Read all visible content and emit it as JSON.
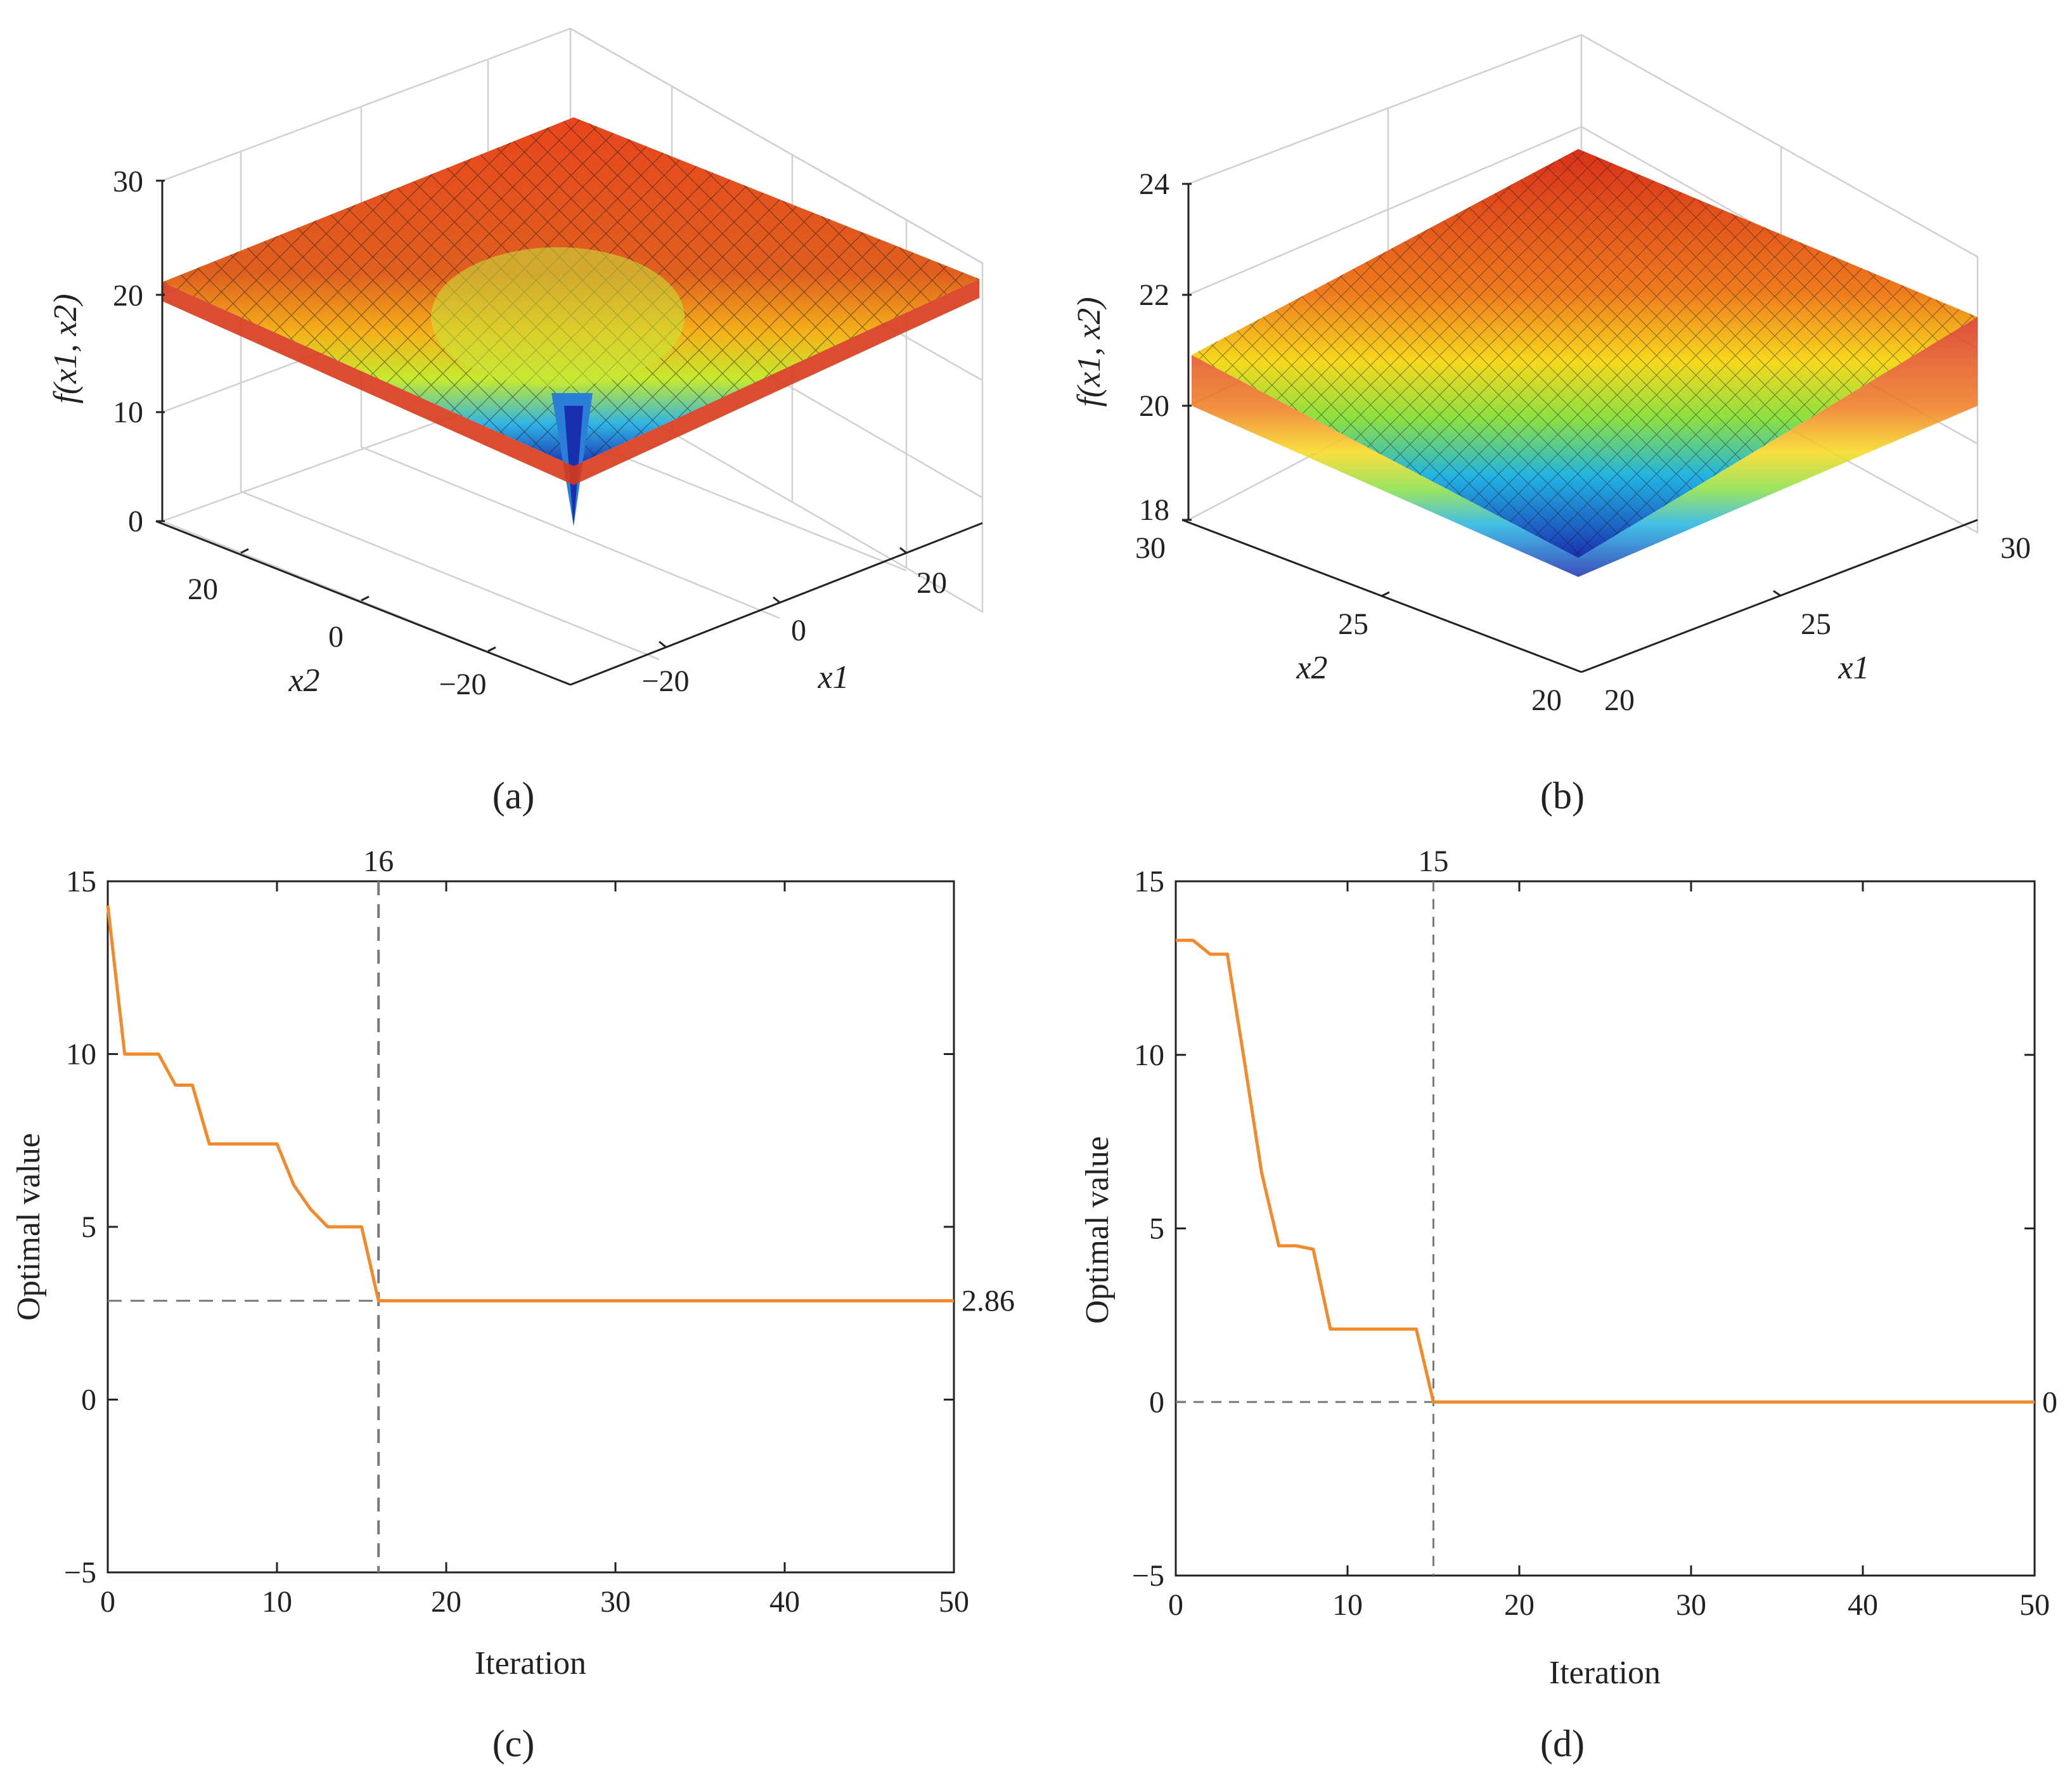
{
  "panels": {
    "a": "(a)",
    "b": "(b)",
    "c": "(c)",
    "d": "(d)"
  },
  "colors": {
    "curve": "#f28a2b",
    "dashed": "#7a7a7a",
    "axis": "#222222",
    "grid3d": "#d0d0d0",
    "surface_colormap": "jet"
  },
  "chart_data": [
    {
      "id": "a",
      "type": "surface",
      "zlabel": "f(x1, x2)",
      "xlabel": "x1",
      "ylabel": "x2",
      "zticks": [
        "0",
        "10",
        "20",
        "30"
      ],
      "xticks": [
        "−20",
        "0",
        "20"
      ],
      "yticks": [
        "20",
        "0",
        "−20"
      ],
      "zlim": [
        0,
        30
      ],
      "xlim": [
        -32,
        32
      ],
      "ylim": [
        -32,
        32
      ],
      "grid": true
    },
    {
      "id": "b",
      "type": "surface",
      "zlabel": "f(x1, x2)",
      "xlabel": "x1",
      "ylabel": "x2",
      "zticks": [
        "18",
        "20",
        "22",
        "24"
      ],
      "xticks": [
        "20",
        "25",
        "30"
      ],
      "yticks": [
        "30",
        "25",
        "20"
      ],
      "zlim": [
        18,
        24
      ],
      "xlim": [
        20,
        30
      ],
      "ylim": [
        20,
        30
      ],
      "grid": true
    },
    {
      "id": "c",
      "type": "line",
      "xlabel": "Iteration",
      "ylabel": "Optimal value",
      "xlim": [
        0,
        50
      ],
      "ylim": [
        -5,
        15
      ],
      "xticks": [
        0,
        10,
        20,
        30,
        40,
        50
      ],
      "yticks": [
        -5,
        0,
        5,
        10,
        15
      ],
      "annotation_x": "16",
      "annotation_y": "2.86",
      "marker_x": 16,
      "marker_y": 2.86,
      "series": [
        {
          "x": [
            0,
            1,
            3,
            4,
            5,
            6,
            10,
            11,
            12,
            13,
            15,
            16,
            50
          ],
          "y": [
            14.3,
            10.0,
            10.0,
            9.1,
            9.1,
            7.4,
            7.4,
            6.2,
            5.5,
            5.0,
            5.0,
            2.86,
            2.86
          ]
        }
      ]
    },
    {
      "id": "d",
      "type": "line",
      "xlabel": "Iteration",
      "ylabel": "Optimal value",
      "xlim": [
        0,
        50
      ],
      "ylim": [
        -5,
        15
      ],
      "xticks": [
        0,
        10,
        20,
        30,
        40,
        50
      ],
      "yticks": [
        -5,
        0,
        5,
        10,
        15
      ],
      "annotation_x": "15",
      "annotation_y": "0",
      "marker_x": 15,
      "marker_y": 0,
      "series": [
        {
          "x": [
            0,
            1,
            2,
            3,
            4,
            5,
            6,
            7,
            8,
            9,
            14,
            15,
            50
          ],
          "y": [
            13.3,
            13.3,
            12.9,
            12.9,
            9.8,
            6.6,
            4.5,
            4.5,
            4.4,
            2.1,
            2.1,
            0,
            0
          ]
        }
      ]
    }
  ]
}
